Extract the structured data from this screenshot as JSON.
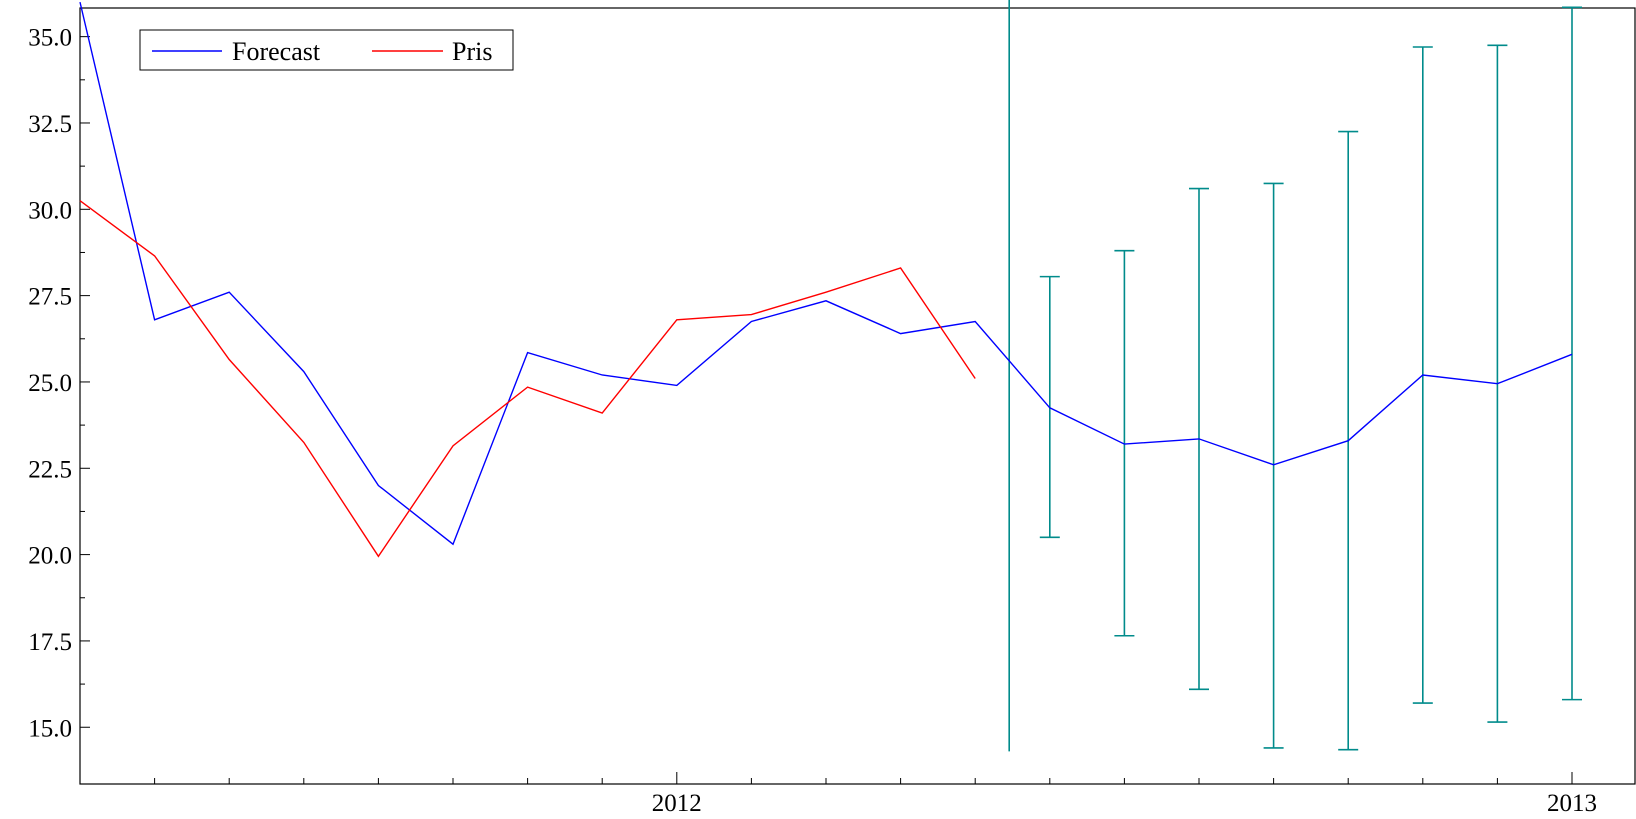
{
  "chart_data": {
    "type": "line",
    "title": "",
    "xlabel": "",
    "ylabel": "",
    "ylim": [
      14.5,
      36.0
    ],
    "yticks": [
      15.0,
      17.5,
      20.0,
      22.5,
      25.0,
      27.5,
      30.0,
      32.5,
      35.0
    ],
    "ytick_labels": [
      "15.0",
      "17.5",
      "20.0",
      "22.5",
      "25.0",
      "27.5",
      "30.0",
      "32.5",
      "35.0"
    ],
    "x_start": "2011-05",
    "x_end": "2013-01",
    "x_major_ticks": [
      {
        "x": "2012-01",
        "label": "2012"
      },
      {
        "x": "2013-01",
        "label": "2013"
      }
    ],
    "x_minor_ticks": [
      "2011-06",
      "2011-07",
      "2011-08",
      "2011-09",
      "2011-10",
      "2011-11",
      "2011-12",
      "2012-02",
      "2012-03",
      "2012-04",
      "2012-05",
      "2012-06",
      "2012-07",
      "2012-08",
      "2012-09",
      "2012-10",
      "2012-11",
      "2012-12"
    ],
    "grid": false,
    "legend_position": "top-left",
    "legend": [
      "Forecast",
      "Pris"
    ],
    "series": [
      {
        "name": "Forecast",
        "color": "#0000ff",
        "points": [
          {
            "x": "2011-05",
            "y": 36.0
          },
          {
            "x": "2011-06",
            "y": 26.8
          },
          {
            "x": "2011-07",
            "y": 27.6
          },
          {
            "x": "2011-08",
            "y": 25.3
          },
          {
            "x": "2011-09",
            "y": 22.0
          },
          {
            "x": "2011-10",
            "y": 20.3
          },
          {
            "x": "2011-11",
            "y": 25.85
          },
          {
            "x": "2011-12",
            "y": 25.2
          },
          {
            "x": "2012-01",
            "y": 24.9
          },
          {
            "x": "2012-02",
            "y": 26.75
          },
          {
            "x": "2012-03",
            "y": 27.35
          },
          {
            "x": "2012-04",
            "y": 26.4
          },
          {
            "x": "2012-05",
            "y": 26.75
          },
          {
            "x": "2012-06",
            "y": 24.25
          },
          {
            "x": "2012-07",
            "y": 23.2
          },
          {
            "x": "2012-08",
            "y": 23.35
          },
          {
            "x": "2012-09",
            "y": 22.6
          },
          {
            "x": "2012-10",
            "y": 23.3
          },
          {
            "x": "2012-11",
            "y": 25.2
          },
          {
            "x": "2012-12",
            "y": 24.95
          },
          {
            "x": "2013-01",
            "y": 25.8
          }
        ]
      },
      {
        "name": "Pris",
        "color": "#ff0000",
        "points": [
          {
            "x": "2011-05",
            "y": 30.25
          },
          {
            "x": "2011-06",
            "y": 28.65
          },
          {
            "x": "2011-07",
            "y": 25.65
          },
          {
            "x": "2011-08",
            "y": 23.25
          },
          {
            "x": "2011-09",
            "y": 19.95
          },
          {
            "x": "2011-10",
            "y": 23.15
          },
          {
            "x": "2011-11",
            "y": 24.85
          },
          {
            "x": "2011-12",
            "y": 24.1
          },
          {
            "x": "2012-01",
            "y": 26.8
          },
          {
            "x": "2012-02",
            "y": 26.95
          },
          {
            "x": "2012-03",
            "y": 27.6
          },
          {
            "x": "2012-04",
            "y": 28.3
          },
          {
            "x": "2012-05",
            "y": 25.1
          }
        ]
      }
    ],
    "vertical_marker": {
      "x": "2012-05",
      "y_low": 14.3,
      "y_high": 36.1,
      "color": "#008b8b"
    },
    "error_bars": {
      "color": "#008b8b",
      "bars": [
        {
          "x": "2012-06",
          "low": 20.5,
          "high": 28.05
        },
        {
          "x": "2012-07",
          "low": 17.65,
          "high": 28.8
        },
        {
          "x": "2012-08",
          "low": 16.1,
          "high": 30.6
        },
        {
          "x": "2012-09",
          "low": 14.4,
          "high": 30.75
        },
        {
          "x": "2012-10",
          "low": 14.35,
          "high": 32.25
        },
        {
          "x": "2012-11",
          "low": 15.7,
          "high": 34.7
        },
        {
          "x": "2012-12",
          "low": 15.15,
          "high": 34.75
        },
        {
          "x": "2013-01",
          "low": 15.8,
          "high": 35.85
        }
      ]
    }
  }
}
